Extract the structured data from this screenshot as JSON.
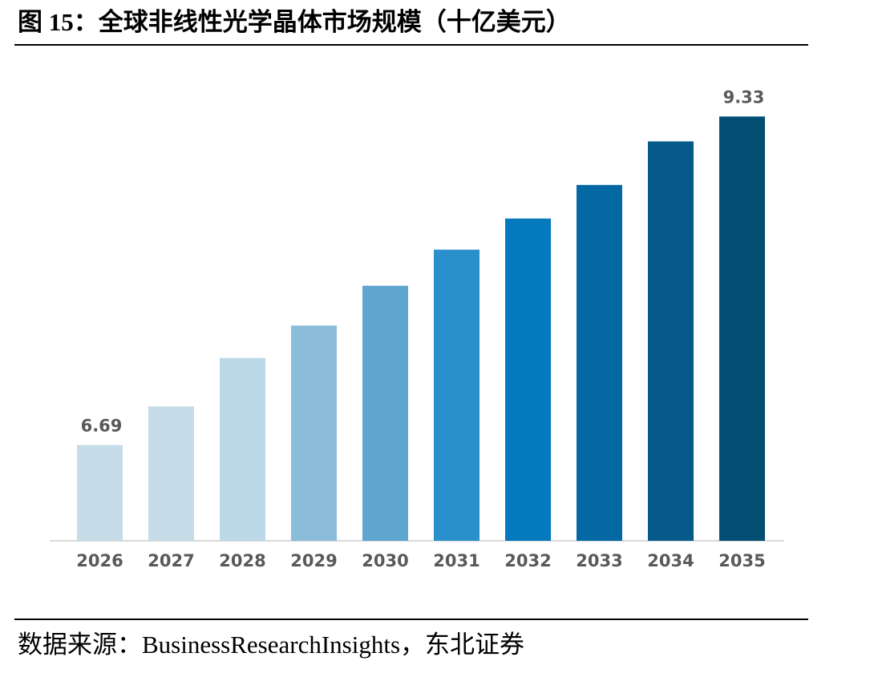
{
  "chart_data": {
    "type": "bar",
    "title": "图 15：全球非线性光学晶体市场规模（十亿美元）",
    "source": "数据来源：BusinessResearchInsights，东北证券",
    "categories": [
      "2026",
      "2027",
      "2028",
      "2029",
      "2030",
      "2031",
      "2032",
      "2033",
      "2034",
      "2035"
    ],
    "values": [
      6.69,
      7.0,
      7.39,
      7.65,
      7.97,
      8.26,
      8.51,
      8.78,
      9.13,
      9.33
    ],
    "value_labels": [
      "6.69",
      null,
      null,
      null,
      null,
      null,
      null,
      null,
      null,
      "9.33"
    ],
    "colors": [
      "#c5dce8",
      "#c5dce8",
      "#bcd9ea",
      "#8bbcd9",
      "#5ea5d0",
      "#2a90cc",
      "#0479be",
      "#0468a5",
      "#055a8a",
      "#044e73"
    ],
    "ylim": [
      5.92,
      9.5
    ]
  }
}
